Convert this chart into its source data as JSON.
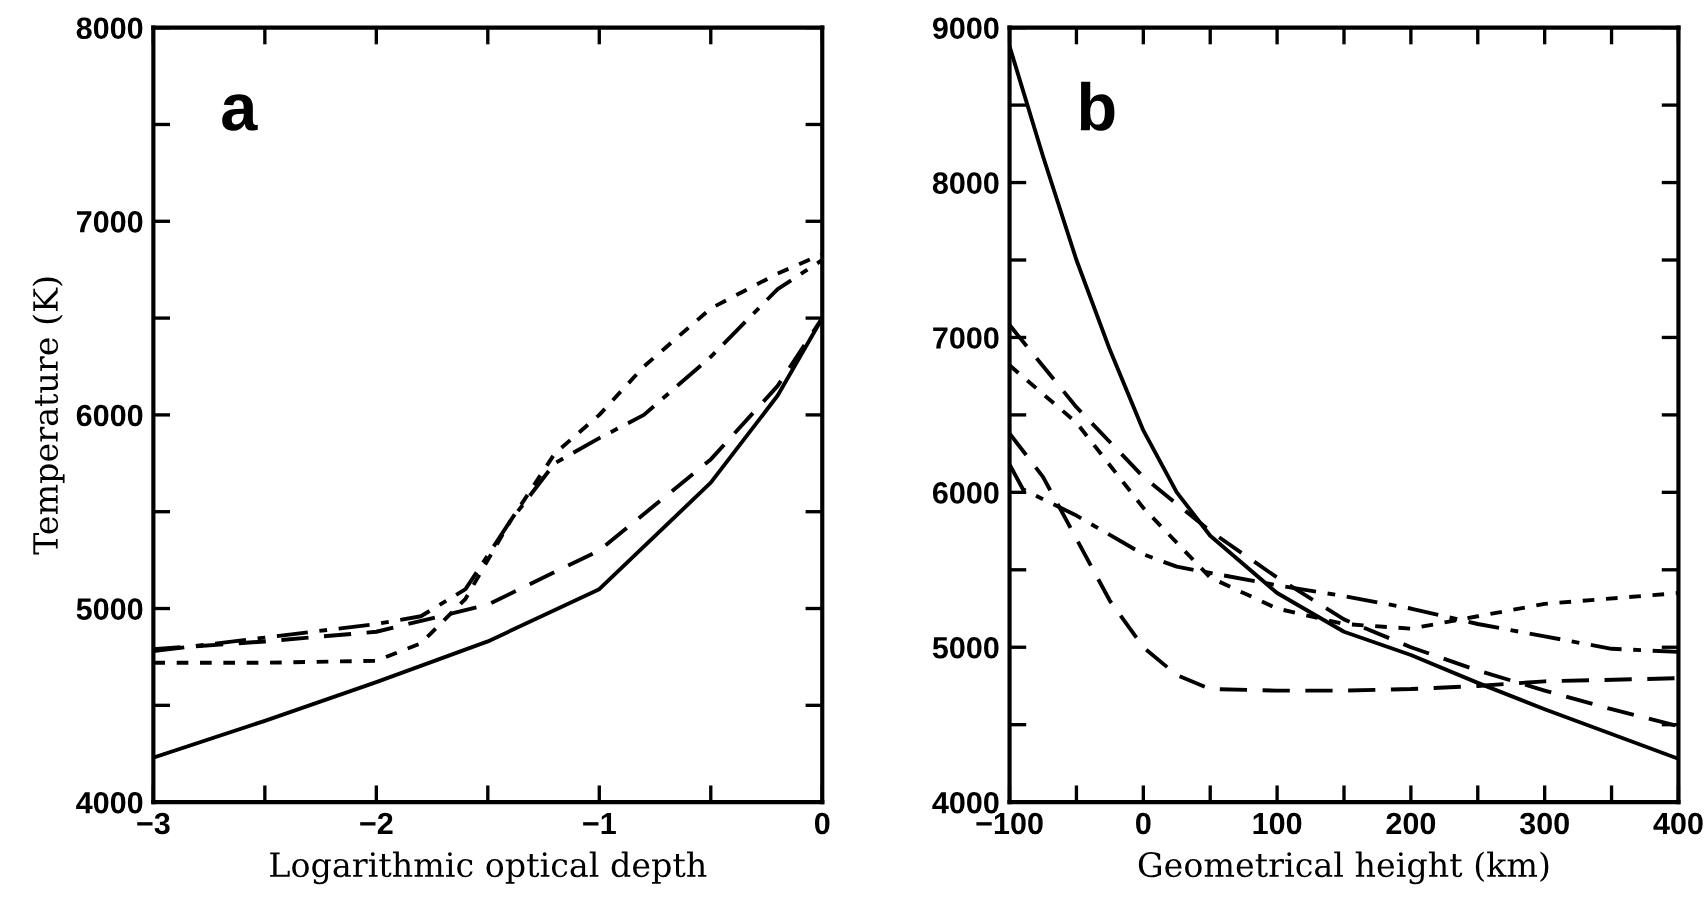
{
  "chart_data": [
    {
      "type": "line",
      "xlabel": "Logarithmic optical depth",
      "ylabel": "Temperature (K)",
      "annotations": [
        "a"
      ],
      "xlim": [
        -3,
        0
      ],
      "ylim": [
        4000,
        8000
      ],
      "xticks": [
        {
          "value": -3,
          "label": "−3"
        },
        {
          "value": -2.5,
          "label": null
        },
        {
          "value": -2,
          "label": "−2"
        },
        {
          "value": -1.5,
          "label": null
        },
        {
          "value": -1,
          "label": "−1"
        },
        {
          "value": -0.5,
          "label": null
        },
        0
      ],
      "yticks": [
        4000,
        {
          "value": 4500,
          "label": null
        },
        5000,
        {
          "value": 5500,
          "label": null
        },
        6000,
        {
          "value": 6500,
          "label": null
        },
        7000,
        {
          "value": 7500,
          "label": null
        },
        8000
      ],
      "grid": false,
      "series": [
        {
          "color": "#000000",
          "line_style": "solid",
          "x": [
            -3,
            -2.5,
            -2,
            -1.5,
            -1,
            -0.5,
            -0.2,
            0
          ],
          "values": [
            4230,
            4420,
            4620,
            4830,
            5100,
            5650,
            6100,
            6500
          ]
        },
        {
          "color": "#000000",
          "line_style": "dashed",
          "x": [
            -3,
            -2.5,
            -2,
            -1.5,
            -1,
            -0.5,
            -0.2,
            0
          ],
          "values": [
            4790,
            4830,
            4880,
            5020,
            5300,
            5770,
            6150,
            6500
          ]
        },
        {
          "color": "#000000",
          "line_style": "dotted",
          "x": [
            -3,
            -2.5,
            -2,
            -1.8,
            -1.6,
            -1.4,
            -1.2,
            -1,
            -0.8,
            -0.5,
            -0.2,
            0
          ],
          "values": [
            4720,
            4720,
            4730,
            4820,
            5050,
            5450,
            5800,
            6000,
            6250,
            6550,
            6730,
            6830
          ]
        },
        {
          "color": "#000000",
          "line_style": "dashdot",
          "x": [
            -3,
            -2.5,
            -2,
            -1.8,
            -1.6,
            -1.4,
            -1.2,
            -1,
            -0.8,
            -0.5,
            -0.2,
            0
          ],
          "values": [
            4780,
            4850,
            4920,
            4960,
            5100,
            5450,
            5750,
            5880,
            6000,
            6300,
            6650,
            6800
          ]
        }
      ]
    },
    {
      "type": "line",
      "xlabel": "Geometrical height (km)",
      "annotations": [
        "b"
      ],
      "xlim": [
        -100,
        400
      ],
      "ylim": [
        4000,
        9000
      ],
      "xticks": [
        {
          "value": -100,
          "label": "−100"
        },
        {
          "value": -50,
          "label": null
        },
        0,
        {
          "value": 50,
          "label": null
        },
        100,
        {
          "value": 150,
          "label": null
        },
        200,
        {
          "value": 250,
          "label": null
        },
        300,
        {
          "value": 350,
          "label": null
        },
        400
      ],
      "yticks": [
        4000,
        {
          "value": 4500,
          "label": null
        },
        5000,
        {
          "value": 5500,
          "label": null
        },
        6000,
        {
          "value": 6500,
          "label": null
        },
        7000,
        {
          "value": 7500,
          "label": null
        },
        8000,
        {
          "value": 8500,
          "label": null
        },
        9000
      ],
      "grid": false,
      "series": [
        {
          "color": "#000000",
          "line_style": "solid",
          "x": [
            -100,
            -75,
            -50,
            -25,
            0,
            25,
            50,
            100,
            150,
            200,
            250,
            300,
            350,
            400
          ],
          "values": [
            8880,
            8170,
            7500,
            6920,
            6400,
            6000,
            5720,
            5350,
            5100,
            4950,
            4770,
            4600,
            4440,
            4280
          ]
        },
        {
          "color": "#000000",
          "line_style": "dashed",
          "x": [
            -100,
            -50,
            0,
            50,
            100,
            150,
            200,
            250,
            300,
            350,
            400
          ],
          "values": [
            7080,
            6550,
            6100,
            5750,
            5450,
            5180,
            5000,
            4850,
            4720,
            4600,
            4490
          ]
        },
        {
          "color": "#000000",
          "line_style": "dotted",
          "x": [
            -100,
            -50,
            0,
            50,
            100,
            150,
            200,
            250,
            300,
            400
          ],
          "values": [
            6820,
            6450,
            5900,
            5450,
            5250,
            5150,
            5120,
            5200,
            5280,
            5350
          ]
        },
        {
          "color": "#000000",
          "line_style": "dashed",
          "x": [
            -100,
            -75,
            -50,
            -25,
            0,
            25,
            50,
            100,
            150,
            200,
            250,
            300,
            400
          ],
          "values": [
            6380,
            6100,
            5700,
            5300,
            5000,
            4820,
            4730,
            4720,
            4720,
            4730,
            4750,
            4780,
            4800
          ]
        },
        {
          "color": "#000000",
          "line_style": "dashdot",
          "x": [
            -100,
            -90,
            -50,
            0,
            25,
            50,
            100,
            150,
            200,
            250,
            300,
            350,
            400
          ],
          "values": [
            6180,
            6020,
            5850,
            5600,
            5520,
            5480,
            5400,
            5330,
            5250,
            5150,
            5070,
            4990,
            4970
          ]
        }
      ]
    }
  ]
}
